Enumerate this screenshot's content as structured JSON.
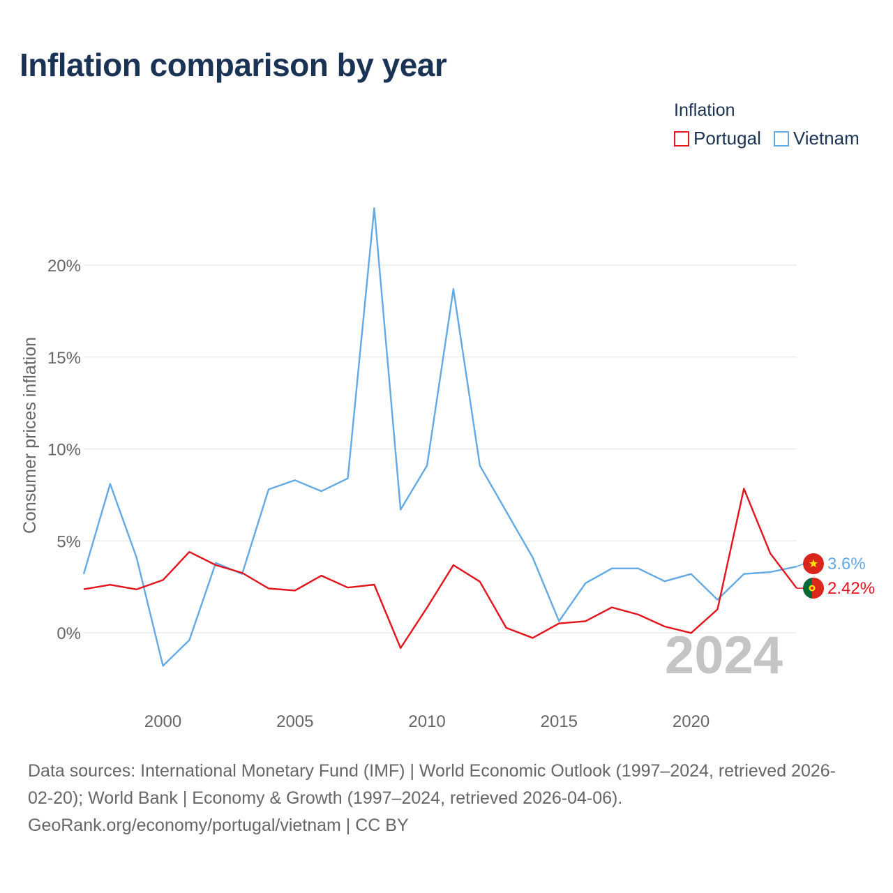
{
  "title": "Inflation comparison by year",
  "legend": {
    "title": "Inflation",
    "items": [
      {
        "name": "Portugal",
        "color": "#e3121b"
      },
      {
        "name": "Vietnam",
        "color": "#62a9e6"
      }
    ]
  },
  "chart_data": {
    "type": "line",
    "title": "Inflation comparison by year",
    "ylabel": "Consumer prices inflation",
    "xlabel": "",
    "ylim": [
      -3.5,
      27
    ],
    "xlim": [
      1997,
      2024
    ],
    "yticks": [
      0,
      5,
      10,
      15,
      20
    ],
    "ytick_labels": [
      "0%",
      "5%",
      "10%",
      "15%",
      "20%"
    ],
    "xticks": [
      2000,
      2005,
      2010,
      2015,
      2020
    ],
    "xtick_labels": [
      "2000",
      "2005",
      "2010",
      "2015",
      "2020"
    ],
    "x": [
      1997,
      1998,
      1999,
      2000,
      2001,
      2002,
      2003,
      2004,
      2005,
      2006,
      2007,
      2008,
      2009,
      2010,
      2011,
      2012,
      2013,
      2014,
      2015,
      2016,
      2017,
      2018,
      2019,
      2020,
      2021,
      2022,
      2023,
      2024
    ],
    "series": [
      {
        "name": "Portugal",
        "color": "#e3121b",
        "values": [
          2.37,
          2.61,
          2.36,
          2.87,
          4.4,
          3.68,
          3.26,
          2.41,
          2.3,
          3.11,
          2.46,
          2.62,
          -0.83,
          1.37,
          3.68,
          2.78,
          0.27,
          -0.28,
          0.51,
          0.63,
          1.38,
          0.99,
          0.34,
          -0.01,
          1.27,
          7.84,
          4.32,
          2.42
        ],
        "end_label": "2.42%"
      },
      {
        "name": "Vietnam",
        "color": "#62a9e6",
        "values": [
          3.2,
          8.1,
          4.1,
          -1.8,
          -0.4,
          3.8,
          3.2,
          7.8,
          8.3,
          7.7,
          8.4,
          23.1,
          6.7,
          9.1,
          18.7,
          9.1,
          6.6,
          4.1,
          0.63,
          2.7,
          3.5,
          3.5,
          2.8,
          3.2,
          1.8,
          3.2,
          3.3,
          3.6
        ],
        "end_label": "3.6%"
      }
    ],
    "year_watermark": "2024"
  },
  "footer": {
    "line1": "Data sources: International Monetary Fund (IMF) | World Economic Outlook (1997–2024, retrieved 2026-",
    "line2": "02-20); World Bank | Economy & Growth (1997–2024, retrieved 2026-04-06).",
    "line3": "GeoRank.org/economy/portugal/vietnam | CC BY"
  }
}
